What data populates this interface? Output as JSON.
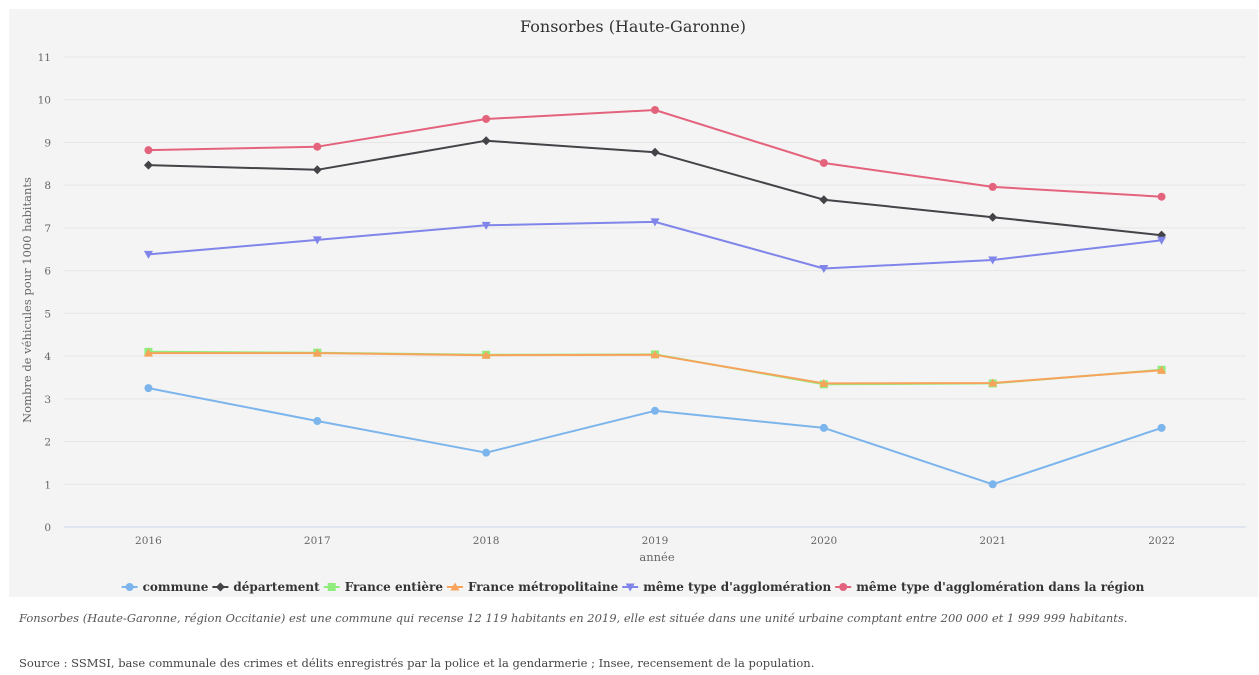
{
  "chart_data": {
    "type": "line",
    "title": "Fonsorbes (Haute-Garonne)",
    "xlabel": "année",
    "ylabel": "Nombre de véhicules pour 1000 habitants",
    "categories": [
      "2016",
      "2017",
      "2018",
      "2019",
      "2020",
      "2021",
      "2022"
    ],
    "ylim": [
      0,
      11
    ],
    "yticks": [
      "0",
      "1",
      "2",
      "3",
      "4",
      "5",
      "6",
      "7",
      "8",
      "9",
      "10",
      "11"
    ],
    "grid": true,
    "legend_position": "bottom",
    "series": [
      {
        "name": "commune",
        "color": "#7cb5ec",
        "marker": "circle",
        "values": [
          3.25,
          2.48,
          1.74,
          2.72,
          2.32,
          1.0,
          2.32
        ]
      },
      {
        "name": "département",
        "color": "#434348",
        "marker": "diamond",
        "values": [
          8.47,
          8.36,
          9.04,
          8.77,
          7.66,
          7.25,
          6.83
        ]
      },
      {
        "name": "France entière",
        "color": "#90ed7d",
        "marker": "square",
        "values": [
          4.1,
          4.08,
          4.03,
          4.04,
          3.34,
          3.36,
          3.68
        ]
      },
      {
        "name": "France métropolitaine",
        "color": "#f7a35c",
        "marker": "triangle",
        "values": [
          4.07,
          4.07,
          4.02,
          4.03,
          3.36,
          3.37,
          3.67
        ]
      },
      {
        "name": "même type d'agglomération",
        "color": "#8085e9",
        "marker": "triangle-down",
        "values": [
          6.38,
          6.72,
          7.06,
          7.14,
          6.05,
          6.25,
          6.71
        ]
      },
      {
        "name": "même type d'agglomération dans la région",
        "color": "#e4637c",
        "marker": "circle",
        "values": [
          8.82,
          8.9,
          9.55,
          9.76,
          8.52,
          7.96,
          7.73
        ]
      }
    ]
  },
  "caption": "Fonsorbes (Haute-Garonne, région Occitanie) est une commune qui recense 12 119 habitants en 2019, elle est située dans une unité urbaine comptant entre 200 000 et 1 999 999 habitants.",
  "source": "Source : SSMSI, base communale des crimes et délits enregistrés par la police et la gendarmerie ; Insee, recensement de la population."
}
